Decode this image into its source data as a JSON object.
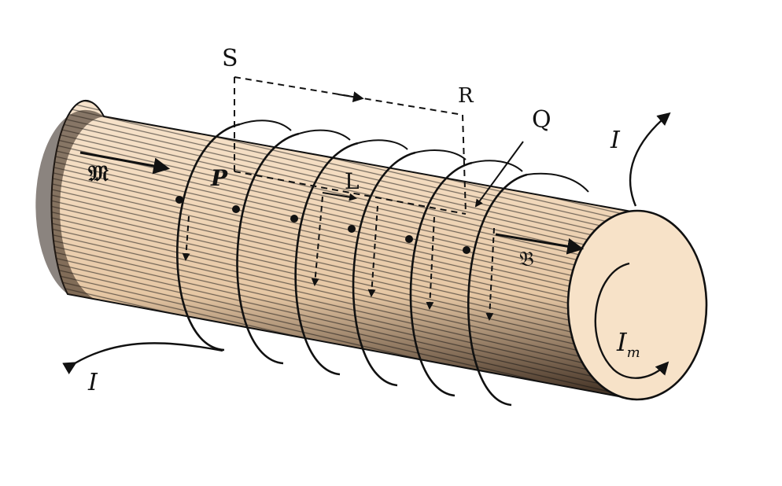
{
  "diagram": {
    "colors": {
      "body": "#f4dcc0",
      "end_face": "#f7e2c8",
      "ink": "#111111"
    },
    "labels": {
      "S": "S",
      "R": "R",
      "Q": "Q",
      "P": "P",
      "L": "L",
      "M": "𝔐",
      "B": "𝔅",
      "I_top": "I",
      "I_bottom": "I",
      "I_m_main": "I",
      "I_m_sub": "m"
    }
  }
}
